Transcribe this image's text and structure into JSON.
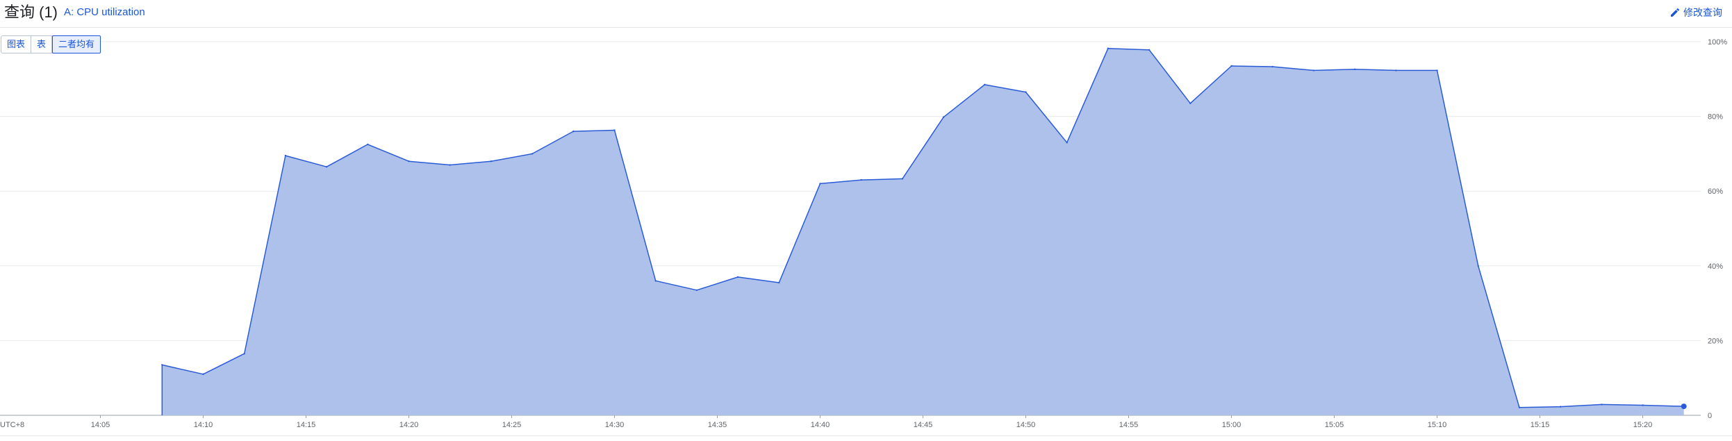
{
  "header": {
    "title": "查询 (1)",
    "query_label": "A: CPU utilization",
    "edit_label": "修改查询",
    "edit_icon": "pencil-icon"
  },
  "view_toggle": {
    "options": [
      "图表",
      "表",
      "二者均有"
    ],
    "selected": "二者均有"
  },
  "colors": {
    "area_fill": "#adc1eb",
    "area_stroke": "#2a5bd7",
    "grid": "#e8eaed",
    "accent": "#1a56d6"
  },
  "chart_data": {
    "type": "area",
    "timezone_label": "UTC+8",
    "x_tick_labels": [
      "14:05",
      "14:10",
      "14:15",
      "14:20",
      "14:25",
      "14:30",
      "14:35",
      "14:40",
      "14:45",
      "14:50",
      "14:55",
      "15:00",
      "15:05",
      "15:10",
      "15:15",
      "15:20"
    ],
    "y_tick_labels": [
      "0",
      "20%",
      "40%",
      "60%",
      "80%",
      "100%"
    ],
    "ylim": [
      0,
      100
    ],
    "xlim": [
      "14:02",
      "15:24"
    ],
    "grid": true,
    "series": [
      {
        "x": [
          "14:08",
          "14:10",
          "14:12",
          "14:14",
          "14:16",
          "14:18",
          "14:20",
          "14:22",
          "14:24",
          "14:26",
          "14:28",
          "14:30",
          "14:32",
          "14:34",
          "14:36",
          "14:38",
          "14:40",
          "14:42",
          "14:44",
          "14:46",
          "14:48",
          "14:50",
          "14:52",
          "14:54",
          "14:56",
          "14:58",
          "15:00",
          "15:02",
          "15:04",
          "15:06",
          "15:08",
          "15:10",
          "15:12",
          "15:14",
          "15:16",
          "15:18",
          "15:20",
          "15:22"
        ],
        "values": [
          13.5,
          11,
          16.5,
          69.5,
          66.5,
          72.5,
          68,
          67,
          68,
          70,
          76,
          76.3,
          36,
          33.5,
          37,
          35.5,
          62,
          63,
          63.3,
          79.8,
          88.5,
          86.5,
          73,
          98.2,
          97.8,
          83.5,
          93.5,
          93.3,
          92.3,
          92.6,
          92.3,
          92.3,
          40,
          2.1,
          2.3,
          2.9,
          2.7,
          2.4
        ]
      }
    ]
  }
}
